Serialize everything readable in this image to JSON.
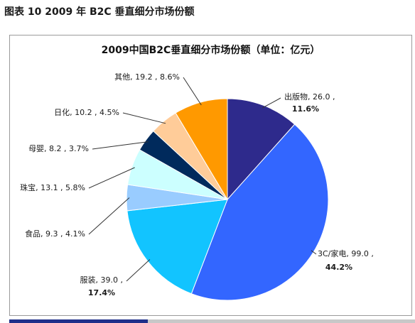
{
  "caption": "图表 10 2009 年 B2C 垂直细分市场份额",
  "chart_data": {
    "type": "pie",
    "title": "2009中国B2C垂直细分市场份额（单位：亿元）",
    "unit": "亿元",
    "slices": [
      {
        "name": "出版物",
        "value": 26.0,
        "percent": "11.6%",
        "label": "出版物, 26.0 ,",
        "label2": "11.6%",
        "color": "#2e2a8c"
      },
      {
        "name": "3C/家电",
        "value": 99.0,
        "percent": "44.2%",
        "label": "3C/家电, 99.0 ,",
        "label2": "44.2%",
        "color": "#3366ff"
      },
      {
        "name": "服装",
        "value": 39.0,
        "percent": "17.4%",
        "label": "服装, 39.0 ,",
        "label2": "17.4%",
        "color": "#12c4ff"
      },
      {
        "name": "食品",
        "value": 9.3,
        "percent": "4.1%",
        "label": "食品, 9.3 , 4.1%",
        "color": "#99ccff"
      },
      {
        "name": "珠宝",
        "value": 13.1,
        "percent": "5.8%",
        "label": "珠宝, 13.1 , 5.8%",
        "color": "#ccffff"
      },
      {
        "name": "母婴",
        "value": 8.2,
        "percent": "3.7%",
        "label": "母婴, 8.2 , 3.7%",
        "color": "#002a5c"
      },
      {
        "name": "日化",
        "value": 10.2,
        "percent": "4.5%",
        "label": "日化, 10.2 , 4.5%",
        "color": "#ffcc99"
      },
      {
        "name": "其他",
        "value": 19.2,
        "percent": "8.6%",
        "label": "其他, 19.2 , 8.6%",
        "color": "#ff9900"
      }
    ]
  }
}
